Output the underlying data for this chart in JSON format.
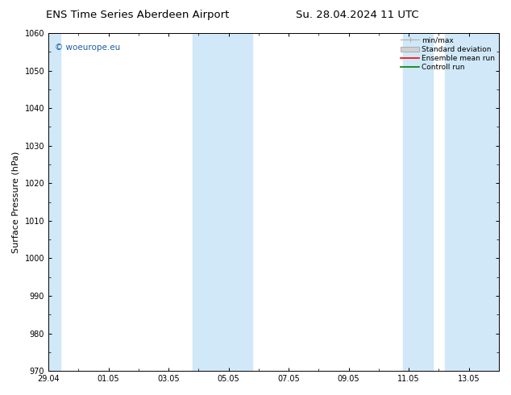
{
  "title": "ENS Time Series Aberdeen Airport",
  "title2": "Su. 28.04.2024 11 UTC",
  "ylabel": "Surface Pressure (hPa)",
  "ylim": [
    970,
    1060
  ],
  "yticks": [
    970,
    980,
    990,
    1000,
    1010,
    1020,
    1030,
    1040,
    1050,
    1060
  ],
  "xlim": [
    0,
    15
  ],
  "xtick_labels": [
    "29.04",
    "01.05",
    "03.05",
    "05.05",
    "07.05",
    "09.05",
    "11.05",
    "13.05"
  ],
  "xtick_positions": [
    0,
    2,
    4,
    6,
    8,
    10,
    12,
    14
  ],
  "background_color": "#ffffff",
  "plot_bg_color": "#ffffff",
  "shaded_bands": [
    {
      "x_start": -0.1,
      "x_end": 0.4,
      "color": "#d0e8f8"
    },
    {
      "x_start": 4.8,
      "x_end": 6.8,
      "color": "#d0e8f8"
    },
    {
      "x_start": 11.8,
      "x_end": 12.8,
      "color": "#d0e8f8"
    },
    {
      "x_start": 13.2,
      "x_end": 15.1,
      "color": "#d0e8f8"
    }
  ],
  "legend_items": [
    {
      "label": "min/max",
      "color": "#b0b0b0",
      "type": "errorbar"
    },
    {
      "label": "Standard deviation",
      "color": "#d0d0d0",
      "type": "band"
    },
    {
      "label": "Ensemble mean run",
      "color": "#ff0000",
      "type": "line"
    },
    {
      "label": "Controll run",
      "color": "#008000",
      "type": "line"
    }
  ],
  "watermark_text": "© woeurope.eu",
  "watermark_color": "#1a5fa8",
  "watermark_fontsize": 7.5,
  "title_fontsize": 9.5,
  "axis_fontsize": 7,
  "ylabel_fontsize": 8,
  "legend_fontsize": 6.5
}
